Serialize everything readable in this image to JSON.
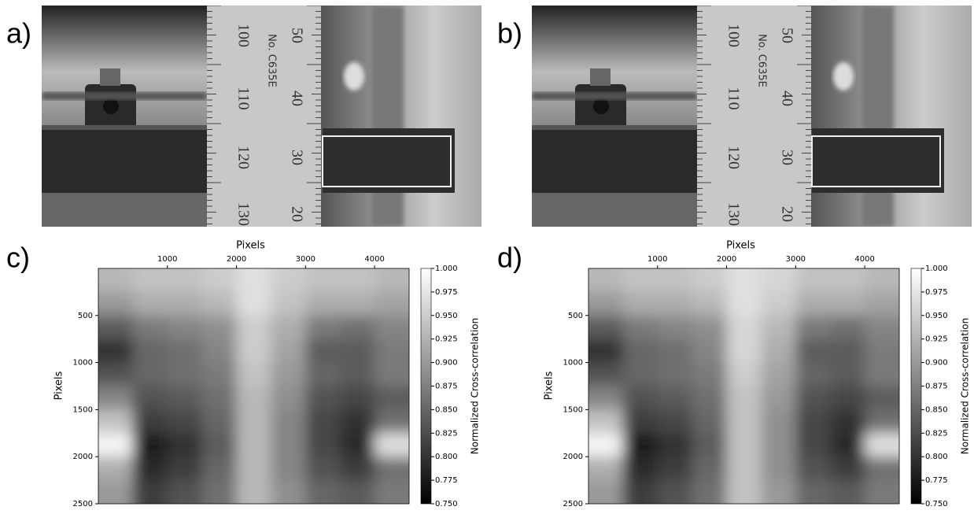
{
  "panel_labels": [
    "a)",
    "b)",
    "c)",
    "d)"
  ],
  "photo_texts": [
    "100",
    "110",
    "120",
    "130",
    "50",
    "40",
    "30",
    "20",
    "No. C635E"
  ],
  "chart_data": [
    {
      "type": "heatmap",
      "xlabel": "Pixels",
      "ylabel": "Pixels",
      "colorbar_label": "Normalized Cross-correlation",
      "x": [
        250,
        750,
        1250,
        1750,
        2250,
        2750,
        3250,
        3750,
        4250
      ],
      "y": [
        125,
        375,
        625,
        875,
        1125,
        1375,
        1625,
        1875,
        2125,
        2375
      ],
      "xlim": [
        0,
        4500
      ],
      "xticks": [
        1000,
        2000,
        3000,
        4000
      ],
      "ylim": [
        0,
        2500
      ],
      "yticks": [
        500,
        1000,
        1500,
        2000,
        2500
      ],
      "y_inverted": true,
      "clim": [
        0.75,
        1.0
      ],
      "cticks": [
        {
          "value": 0.75,
          "label": "0.750"
        },
        {
          "value": 0.775,
          "label": "0.775"
        },
        {
          "value": 0.8,
          "label": "0.800"
        },
        {
          "value": 0.825,
          "label": "0.825"
        },
        {
          "value": 0.85,
          "label": "0.850"
        },
        {
          "value": 0.875,
          "label": "0.875"
        },
        {
          "value": 0.9,
          "label": "0.900"
        },
        {
          "value": 0.925,
          "label": "0.925"
        },
        {
          "value": 0.95,
          "label": "0.950"
        },
        {
          "value": 0.975,
          "label": "0.975"
        },
        {
          "value": 1.0,
          "label": "1.000"
        }
      ],
      "values": [
        [
          0.93,
          0.94,
          0.94,
          0.95,
          0.97,
          0.95,
          0.94,
          0.94,
          0.93
        ],
        [
          0.9,
          0.92,
          0.92,
          0.93,
          0.97,
          0.94,
          0.92,
          0.92,
          0.91
        ],
        [
          0.84,
          0.87,
          0.88,
          0.89,
          0.95,
          0.92,
          0.87,
          0.86,
          0.88
        ],
        [
          0.8,
          0.85,
          0.86,
          0.88,
          0.95,
          0.91,
          0.84,
          0.84,
          0.87
        ],
        [
          0.83,
          0.85,
          0.86,
          0.87,
          0.94,
          0.9,
          0.85,
          0.84,
          0.87
        ],
        [
          0.88,
          0.83,
          0.84,
          0.86,
          0.93,
          0.89,
          0.83,
          0.82,
          0.84
        ],
        [
          0.94,
          0.81,
          0.82,
          0.85,
          0.93,
          0.88,
          0.82,
          0.8,
          0.86
        ],
        [
          0.99,
          0.78,
          0.8,
          0.84,
          0.93,
          0.88,
          0.82,
          0.79,
          0.97
        ],
        [
          0.92,
          0.79,
          0.81,
          0.85,
          0.93,
          0.88,
          0.83,
          0.81,
          0.86
        ],
        [
          0.9,
          0.81,
          0.83,
          0.86,
          0.93,
          0.89,
          0.85,
          0.84,
          0.87
        ]
      ]
    },
    {
      "type": "heatmap",
      "xlabel": "Pixels",
      "ylabel": "Pixels",
      "colorbar_label": "Normalized Cross-correlation",
      "x": [
        250,
        750,
        1250,
        1750,
        2250,
        2750,
        3250,
        3750,
        4250
      ],
      "y": [
        125,
        375,
        625,
        875,
        1125,
        1375,
        1625,
        1875,
        2125,
        2375
      ],
      "xlim": [
        0,
        4500
      ],
      "xticks": [
        1000,
        2000,
        3000,
        4000
      ],
      "ylim": [
        0,
        2500
      ],
      "yticks": [
        500,
        1000,
        1500,
        2000,
        2500
      ],
      "y_inverted": true,
      "clim": [
        0.75,
        1.0
      ],
      "cticks": [
        {
          "value": 0.75,
          "label": "0.750"
        },
        {
          "value": 0.775,
          "label": "0.775"
        },
        {
          "value": 0.8,
          "label": "0.800"
        },
        {
          "value": 0.825,
          "label": "0.825"
        },
        {
          "value": 0.85,
          "label": "0.850"
        },
        {
          "value": 0.875,
          "label": "0.875"
        },
        {
          "value": 0.9,
          "label": "0.900"
        },
        {
          "value": 0.925,
          "label": "0.925"
        },
        {
          "value": 0.95,
          "label": "0.950"
        },
        {
          "value": 0.975,
          "label": "0.975"
        },
        {
          "value": 1.0,
          "label": "1.000"
        }
      ],
      "values": [
        [
          0.93,
          0.94,
          0.94,
          0.95,
          0.97,
          0.96,
          0.94,
          0.94,
          0.93
        ],
        [
          0.9,
          0.92,
          0.92,
          0.93,
          0.97,
          0.95,
          0.92,
          0.92,
          0.91
        ],
        [
          0.84,
          0.87,
          0.88,
          0.89,
          0.96,
          0.93,
          0.87,
          0.86,
          0.88
        ],
        [
          0.8,
          0.85,
          0.86,
          0.88,
          0.96,
          0.92,
          0.84,
          0.84,
          0.87
        ],
        [
          0.83,
          0.85,
          0.86,
          0.87,
          0.95,
          0.91,
          0.85,
          0.84,
          0.87
        ],
        [
          0.88,
          0.83,
          0.84,
          0.86,
          0.94,
          0.9,
          0.83,
          0.82,
          0.84
        ],
        [
          0.94,
          0.81,
          0.82,
          0.85,
          0.94,
          0.89,
          0.82,
          0.8,
          0.86
        ],
        [
          0.99,
          0.78,
          0.8,
          0.84,
          0.94,
          0.89,
          0.82,
          0.79,
          0.97
        ],
        [
          0.92,
          0.79,
          0.81,
          0.85,
          0.94,
          0.89,
          0.83,
          0.81,
          0.86
        ],
        [
          0.9,
          0.81,
          0.83,
          0.86,
          0.94,
          0.9,
          0.85,
          0.84,
          0.87
        ]
      ]
    }
  ]
}
